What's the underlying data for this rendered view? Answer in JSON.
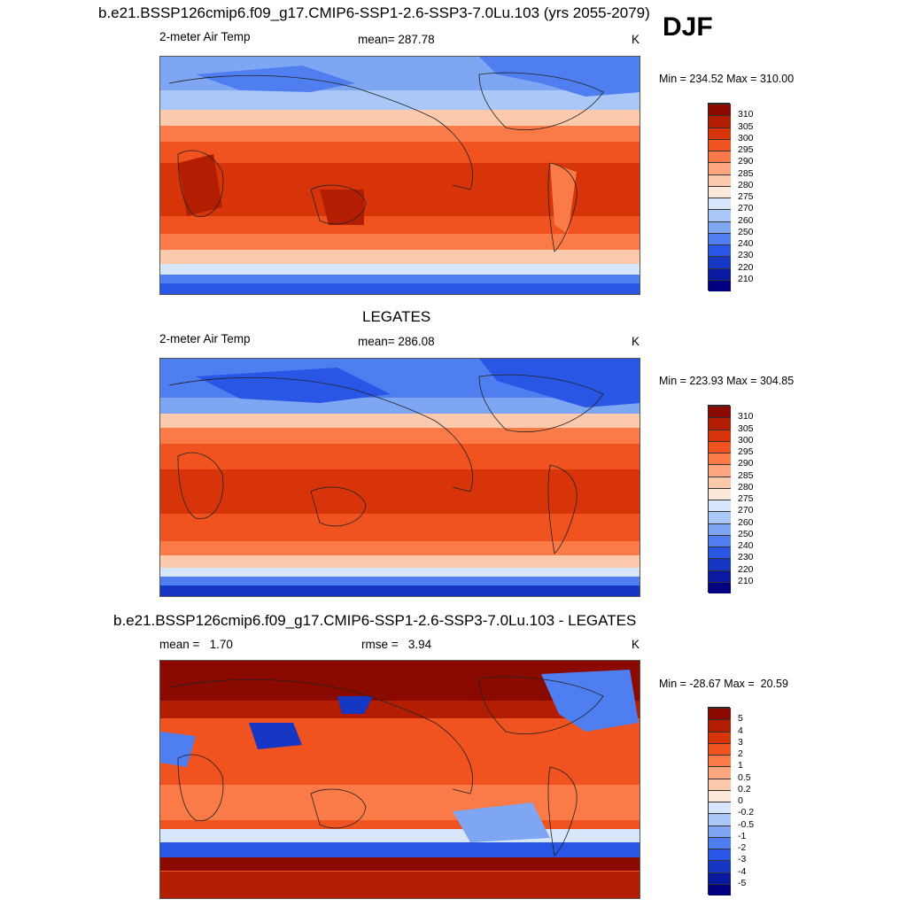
{
  "header": {
    "title": "b.e21.BSSP126cmip6.f09_g17.CMIP6-SSP1-2.6-SSP3-7.0Lu.103 (yrs 2055-2079)",
    "season": "DJF"
  },
  "panels": [
    {
      "id": "model",
      "left_label": "2-meter Air Temp",
      "center_label": "mean= 287.78",
      "units": "K",
      "minmax": "Min = 234.52 Max = 310.00",
      "colorbar_ticks": [
        "310",
        "305",
        "300",
        "295",
        "290",
        "285",
        "280",
        "275",
        "270",
        "260",
        "250",
        "240",
        "230",
        "220",
        "210"
      ]
    },
    {
      "id": "obs",
      "title": "LEGATES",
      "left_label": "2-meter Air Temp",
      "center_label": "mean= 286.08",
      "units": "K",
      "minmax": "Min = 223.93 Max = 304.85",
      "colorbar_ticks": [
        "310",
        "305",
        "300",
        "295",
        "290",
        "285",
        "280",
        "275",
        "270",
        "260",
        "250",
        "240",
        "230",
        "220",
        "210"
      ]
    },
    {
      "id": "diff",
      "title": "b.e21.BSSP126cmip6.f09_g17.CMIP6-SSP1-2.6-SSP3-7.0Lu.103 - LEGATES",
      "left_label": "mean =   1.70",
      "center_label": "rmse =   3.94",
      "units": "K",
      "minmax": "Min = -28.67 Max =  20.59",
      "colorbar_ticks": [
        "5",
        "4",
        "3",
        "2",
        "1",
        "0.5",
        "0.2",
        "0",
        "-0.2",
        "-0.5",
        "-1",
        "-2",
        "-3",
        "-4",
        "-5"
      ]
    }
  ],
  "colors": {
    "temp_scale": [
      "#8b0a00",
      "#b31e02",
      "#d8340a",
      "#f05220",
      "#fa7a48",
      "#fca57e",
      "#fdc9ad",
      "#fde9d9",
      "#d7e6fb",
      "#aac8f7",
      "#7ea6f3",
      "#4f7ef0",
      "#2a56e6",
      "#1636c4",
      "#0a1aa0",
      "#000080"
    ],
    "diff_scale": [
      "#8b0a00",
      "#b31e02",
      "#d8340a",
      "#f05220",
      "#fa7a48",
      "#fca57e",
      "#fdc9ad",
      "#fde9d9",
      "#d7e6fb",
      "#aac8f7",
      "#7ea6f3",
      "#4f7ef0",
      "#2a56e6",
      "#1636c4",
      "#0a1aa0",
      "#000080"
    ]
  }
}
